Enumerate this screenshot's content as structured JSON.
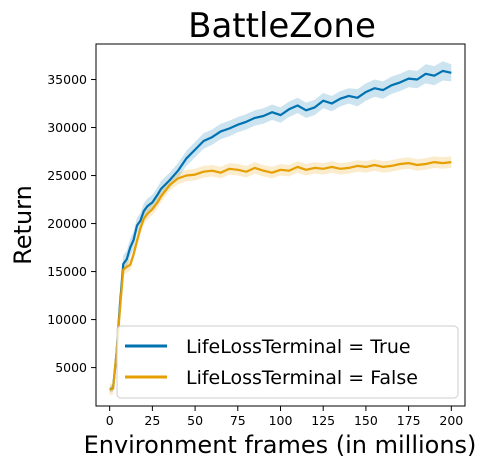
{
  "chart_data": {
    "type": "line",
    "title": "BattleZone",
    "xlabel": "Environment frames (in millions)",
    "ylabel": "Return",
    "xlim": [
      -8,
      208
    ],
    "ylim": [
      1000,
      38700
    ],
    "xticks": [
      0,
      25,
      50,
      75,
      100,
      125,
      150,
      175,
      200
    ],
    "yticks": [
      5000,
      10000,
      15000,
      20000,
      25000,
      30000,
      35000
    ],
    "legend_position": "lower-right",
    "grid": false,
    "series": [
      {
        "name": "LifeLossTerminal = True",
        "color": "#0072b2",
        "x": [
          0,
          2,
          4,
          6,
          8,
          10,
          12,
          14,
          16,
          18,
          20,
          22,
          25,
          28,
          30,
          35,
          40,
          45,
          50,
          55,
          60,
          65,
          70,
          75,
          80,
          85,
          90,
          95,
          100,
          105,
          110,
          115,
          120,
          125,
          130,
          135,
          140,
          145,
          150,
          155,
          160,
          165,
          170,
          175,
          180,
          185,
          190,
          195,
          200
        ],
        "y": [
          2700,
          2900,
          6500,
          11500,
          15800,
          16300,
          17500,
          18300,
          19800,
          20300,
          21300,
          21800,
          22200,
          23000,
          23600,
          24500,
          25500,
          26800,
          27700,
          28600,
          29000,
          29600,
          29900,
          30300,
          30600,
          31000,
          31200,
          31600,
          31300,
          31900,
          32300,
          31800,
          32100,
          32800,
          32500,
          33000,
          33300,
          33100,
          33700,
          34100,
          33900,
          34400,
          34700,
          35100,
          35000,
          35600,
          35400,
          35900,
          35700
        ],
        "band": [
          300,
          400,
          800,
          900,
          900,
          900,
          900,
          900,
          800,
          800,
          800,
          800,
          800,
          800,
          800,
          800,
          800,
          800,
          800,
          800,
          800,
          800,
          800,
          800,
          800,
          800,
          800,
          800,
          800,
          800,
          800,
          800,
          800,
          800,
          800,
          800,
          800,
          900,
          900,
          900,
          900,
          900,
          900,
          900,
          900,
          1000,
          1000,
          1000,
          900
        ]
      },
      {
        "name": "LifeLossTerminal = False",
        "color": "#e69f00",
        "x": [
          0,
          2,
          4,
          6,
          8,
          10,
          12,
          14,
          16,
          18,
          20,
          22,
          25,
          28,
          30,
          35,
          40,
          45,
          50,
          55,
          60,
          65,
          70,
          75,
          80,
          85,
          90,
          95,
          100,
          105,
          110,
          115,
          120,
          125,
          130,
          135,
          140,
          145,
          150,
          155,
          160,
          165,
          170,
          175,
          180,
          185,
          190,
          195,
          200
        ],
        "y": [
          2700,
          2800,
          6500,
          11000,
          15200,
          15500,
          15700,
          16800,
          18200,
          19500,
          20500,
          21000,
          21500,
          22200,
          22800,
          24000,
          24700,
          25000,
          25100,
          25400,
          25500,
          25300,
          25700,
          25600,
          25400,
          25800,
          25500,
          25300,
          25600,
          25500,
          25900,
          25600,
          25800,
          25700,
          25900,
          25700,
          25800,
          26000,
          25900,
          26100,
          25900,
          26000,
          26200,
          26300,
          26100,
          26200,
          26400,
          26300,
          26400
        ]
      }
    ]
  }
}
